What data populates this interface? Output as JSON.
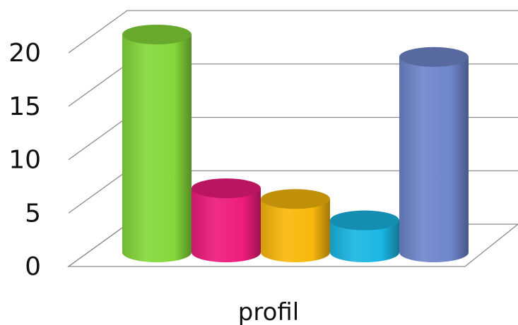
{
  "chart_data": {
    "type": "bar",
    "style": "3d-cylinder",
    "categories": [
      "profil"
    ],
    "series": [
      {
        "values": [
          20.4
        ],
        "color": "#84d83a"
      },
      {
        "values": [
          6.0
        ],
        "color": "#ee1c7b"
      },
      {
        "values": [
          5.0
        ],
        "color": "#f8b80c"
      },
      {
        "values": [
          3.0
        ],
        "color": "#1ab6e2"
      },
      {
        "values": [
          18.3
        ],
        "color": "#6f86cc"
      }
    ],
    "xlabel": "profil",
    "ylabel": "",
    "ylim": [
      0,
      25
    ],
    "yticks": [
      "0",
      "5",
      "10",
      "15",
      "20"
    ],
    "grid": true,
    "legend": "none"
  }
}
